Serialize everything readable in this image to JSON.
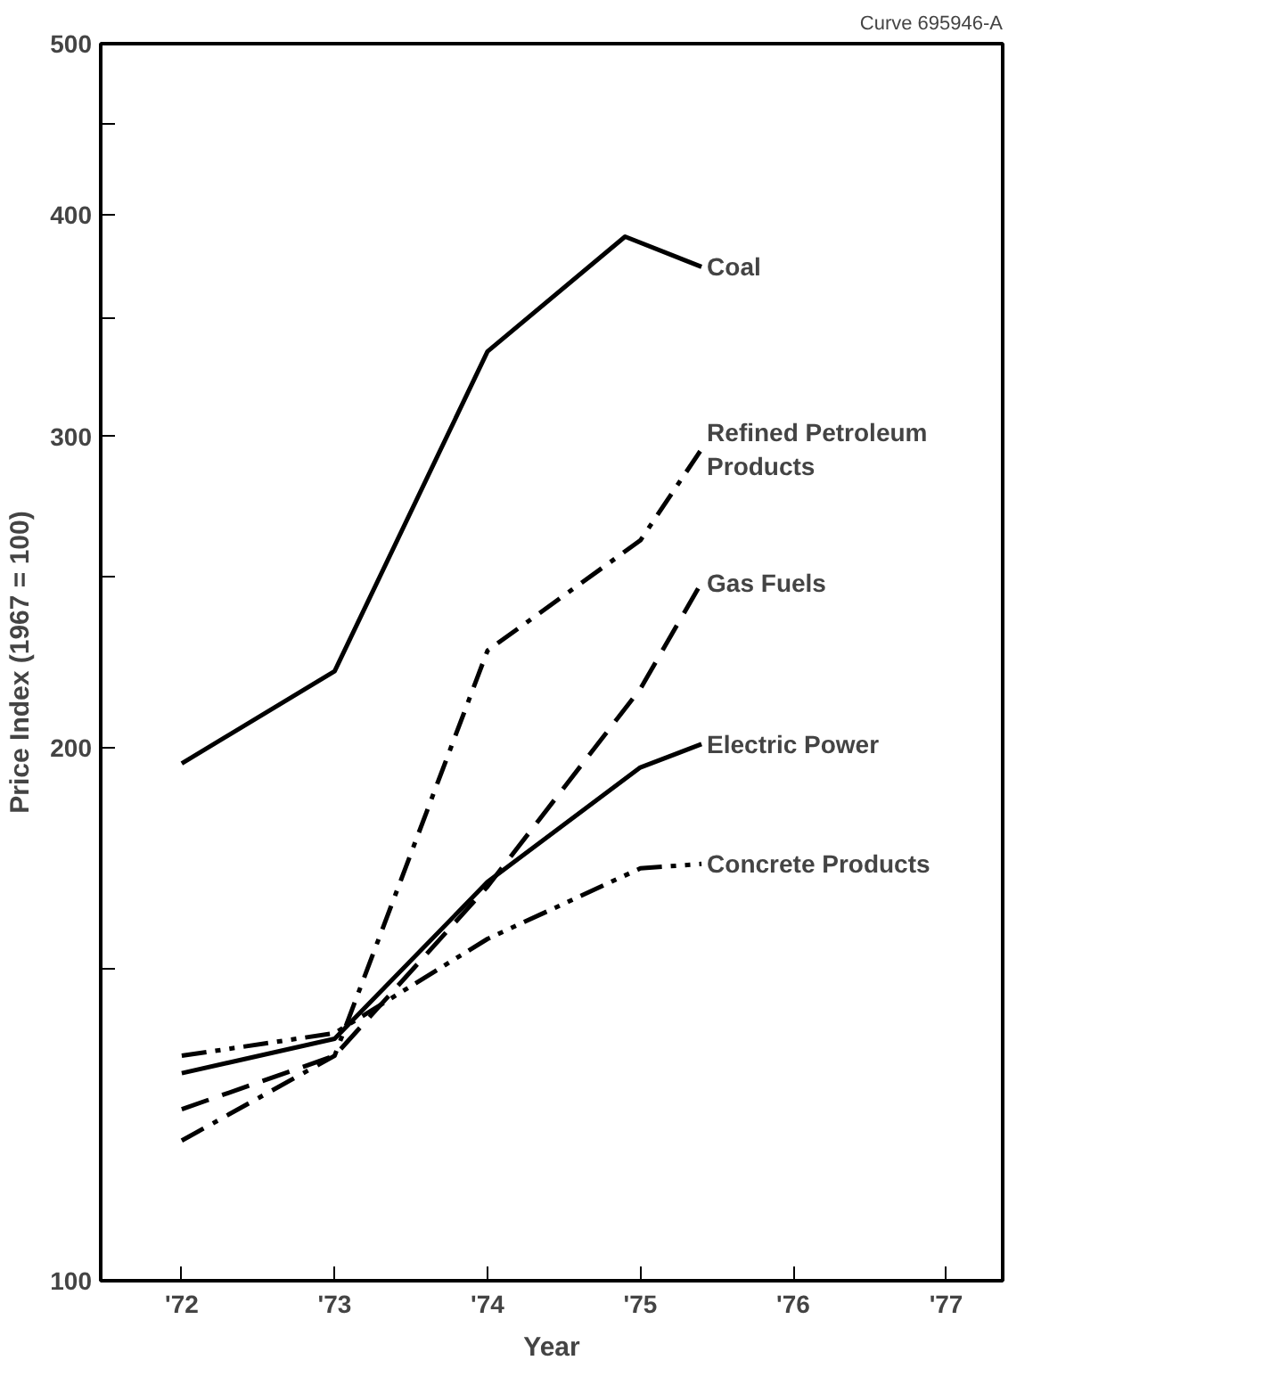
{
  "chart_data": {
    "type": "line",
    "xlabel": "Year",
    "ylabel": "Price Index (1967 = 100)",
    "log": "y",
    "grid": false,
    "legend": false,
    "marker": "none",
    "annotations": [
      "Curve 695946-A"
    ],
    "xlim": [
      71.47,
      77.37
    ],
    "ylim": [
      100,
      500
    ],
    "xticks": [
      {
        "value": 72,
        "label": "'72"
      },
      {
        "value": 73,
        "label": "'73"
      },
      {
        "value": 74,
        "label": "'74"
      },
      {
        "value": 75,
        "label": "'75"
      },
      {
        "value": 76,
        "label": "'76"
      },
      {
        "value": 77,
        "label": "'77"
      }
    ],
    "yticks": [
      100,
      {
        "value": 150,
        "label": null
      },
      200,
      {
        "value": 250,
        "label": null
      },
      300,
      {
        "value": 350,
        "label": null
      },
      400,
      {
        "value": 450,
        "label": null
      },
      500
    ],
    "series": [
      {
        "name": "Coal",
        "color": "#000000",
        "line_style": "solid",
        "x": [
          72,
          73,
          74,
          74.9,
          75.4
        ],
        "values": [
          196,
          221,
          335,
          389,
          374
        ]
      },
      {
        "name": "Refined Petroleum Products",
        "color": "#000000",
        "line_style": "dashdot",
        "x": [
          72,
          73,
          74,
          75,
          75.4
        ],
        "values": [
          120,
          134,
          227,
          262,
          295
        ]
      },
      {
        "name": "Gas Fuels",
        "color": "#000000",
        "line_style": "dashed",
        "x": [
          72,
          73,
          74,
          75,
          75.4
        ],
        "values": [
          125,
          134,
          167,
          216,
          248
        ]
      },
      {
        "name": "Electric Power",
        "color": "#000000",
        "line_style": "solid",
        "x": [
          72,
          73,
          74,
          75,
          75.4
        ],
        "values": [
          131,
          137,
          168,
          195,
          201
        ]
      },
      {
        "name": "Concrete Products",
        "color": "#000000",
        "line_style": "dashdotdot",
        "x": [
          72,
          73,
          74,
          75,
          75.4
        ],
        "values": [
          134,
          138,
          156,
          171,
          172
        ]
      }
    ]
  }
}
